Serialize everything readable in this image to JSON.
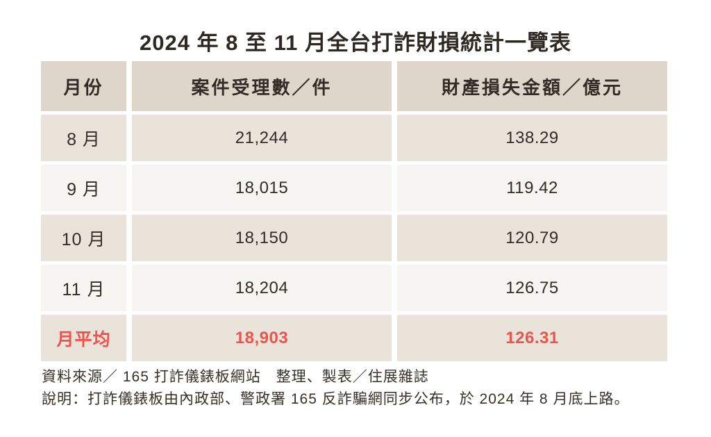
{
  "title": "2024 年 8 至 11 月全台打詐財損統計一覽表",
  "table": {
    "columns": [
      "月份",
      "案件受理數／件",
      "財產損失金額／億元"
    ],
    "rows": [
      {
        "month": "8 月",
        "cases": "21,244",
        "loss": "138.29"
      },
      {
        "month": "9 月",
        "cases": "18,015",
        "loss": "119.42"
      },
      {
        "month": "10 月",
        "cases": "18,150",
        "loss": "120.79"
      },
      {
        "month": "11 月",
        "cases": "18,204",
        "loss": "126.75"
      }
    ],
    "average_row": {
      "month": "月平均",
      "cases": "18,903",
      "loss": "126.31"
    }
  },
  "footer": {
    "source_line": "資料來源／ 165 打詐儀錶板網站　整理、製表／住展雜誌",
    "note_line": "說明：打詐儀錶板由內政部、警政署 165 反詐騙網同步公布，於 2024 年 8 月底上路。"
  },
  "colors": {
    "header_bg": "#ded6ca",
    "row_odd_bg": "#e9e3d9",
    "row_even_bg": "#f7f5f1",
    "average_text": "#ee534e",
    "text": "#332c26",
    "page_bg": "#ffffff"
  },
  "chart_data": {
    "type": "table",
    "title": "2024 年 8 至 11 月全台打詐財損統計一覽表",
    "columns": [
      "月份",
      "案件受理數／件",
      "財產損失金額／億元"
    ],
    "rows": [
      [
        "8 月",
        21244,
        138.29
      ],
      [
        "9 月",
        18015,
        119.42
      ],
      [
        "10 月",
        18150,
        120.79
      ],
      [
        "11 月",
        18204,
        126.75
      ],
      [
        "月平均",
        18903,
        126.31
      ]
    ],
    "notes": [
      "資料來源／ 165 打詐儀錶板網站　整理、製表／住展雜誌",
      "說明：打詐儀錶板由內政部、警政署 165 反詐騙網同步公布，於 2024 年 8 月底上路。"
    ]
  }
}
